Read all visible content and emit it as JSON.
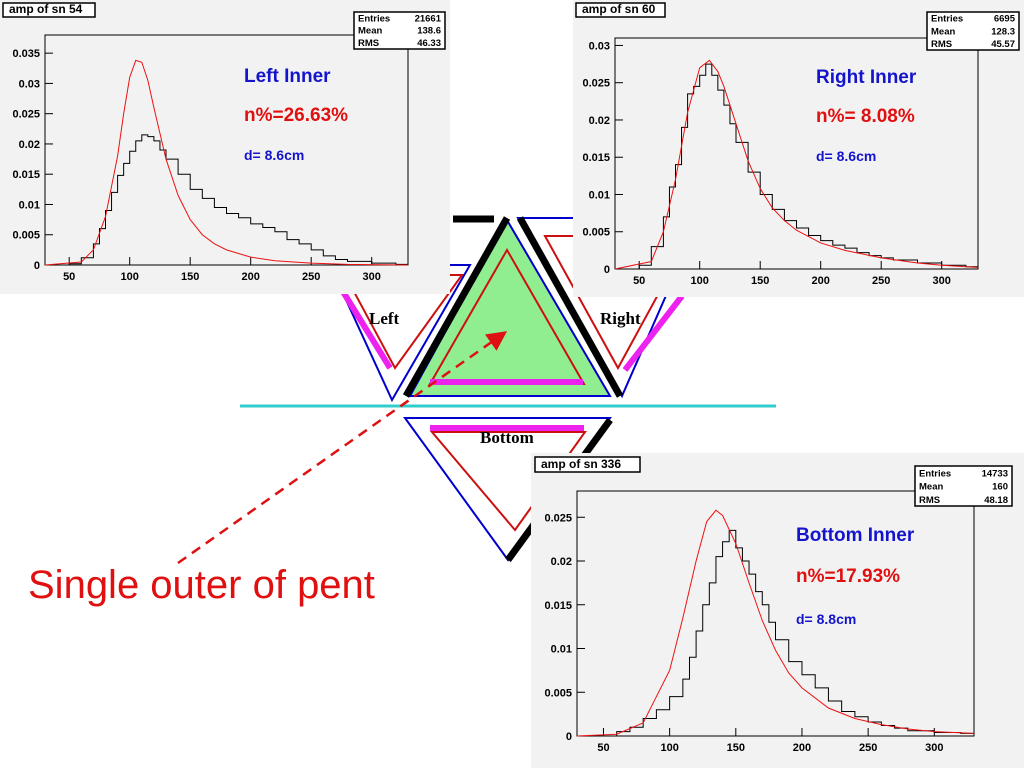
{
  "diagram": {
    "labels": {
      "left": "Left",
      "right": "Right",
      "bottom": "Bottom"
    },
    "caption": "Single outer of pent",
    "colors": {
      "fill": "#90ee90",
      "outline": "#0000cc",
      "inner": "#cc1010",
      "bar": "#ee22ee",
      "thick": "#000000",
      "baseline": "#33cccc",
      "arrow": "#dd1111"
    }
  },
  "panels": [
    {
      "id": "left",
      "title": "amp of sn 54",
      "stats": [
        {
          "k": "Entries",
          "v": "21661"
        },
        {
          "k": "Mean",
          "v": "138.6"
        },
        {
          "k": "RMS",
          "v": "46.33"
        }
      ],
      "annotations": {
        "name": "Left Inner",
        "npct": "n%=26.63%",
        "dist": "d=  8.6cm"
      },
      "chart_data": {
        "type": "line",
        "title": "amp of sn 54",
        "xlim": [
          30,
          330
        ],
        "ylim": [
          0,
          0.038
        ],
        "xticks": [
          50,
          100,
          150,
          200,
          250,
          300
        ],
        "yticks": [
          0,
          0.005,
          0.01,
          0.015,
          0.02,
          0.025,
          0.03,
          0.035
        ],
        "ytick_labels": [
          "0",
          "0.005",
          "0.01",
          "0.015",
          "0.02",
          "0.025",
          "0.03",
          "0.035"
        ],
        "series": [
          {
            "style": "histogram",
            "color": "#000000",
            "points": [
              [
                30,
                0
              ],
              [
                50,
                0.0002
              ],
              [
                60,
                0.0012
              ],
              [
                70,
                0.0035
              ],
              [
                75,
                0.006
              ],
              [
                80,
                0.009
              ],
              [
                85,
                0.012
              ],
              [
                90,
                0.0148
              ],
              [
                95,
                0.0168
              ],
              [
                100,
                0.0188
              ],
              [
                105,
                0.0205
              ],
              [
                110,
                0.0215
              ],
              [
                115,
                0.0212
              ],
              [
                120,
                0.0205
              ],
              [
                125,
                0.019
              ],
              [
                130,
                0.0175
              ],
              [
                140,
                0.015
              ],
              [
                150,
                0.0125
              ],
              [
                160,
                0.011
              ],
              [
                170,
                0.0095
              ],
              [
                180,
                0.0085
              ],
              [
                190,
                0.0078
              ],
              [
                200,
                0.0068
              ],
              [
                210,
                0.0062
              ],
              [
                220,
                0.0055
              ],
              [
                230,
                0.0042
              ],
              [
                240,
                0.0035
              ],
              [
                250,
                0.0025
              ],
              [
                260,
                0.0015
              ],
              [
                270,
                0.0009
              ],
              [
                280,
                0.0006
              ],
              [
                300,
                0.0003
              ],
              [
                320,
                0.0001
              ],
              [
                330,
                0
              ]
            ]
          },
          {
            "style": "curve",
            "color": "#ee1111",
            "points": [
              [
                30,
                0
              ],
              [
                60,
                0.0005
              ],
              [
                70,
                0.0025
              ],
              [
                80,
                0.008
              ],
              [
                90,
                0.018
              ],
              [
                95,
                0.025
              ],
              [
                100,
                0.031
              ],
              [
                105,
                0.0338
              ],
              [
                110,
                0.0335
              ],
              [
                115,
                0.0305
              ],
              [
                120,
                0.026
              ],
              [
                130,
                0.0175
              ],
              [
                140,
                0.0115
              ],
              [
                150,
                0.0075
              ],
              [
                160,
                0.005
              ],
              [
                170,
                0.0035
              ],
              [
                180,
                0.0025
              ],
              [
                200,
                0.0013
              ],
              [
                220,
                0.0007
              ],
              [
                250,
                0.0003
              ],
              [
                280,
                0.0001
              ],
              [
                330,
                0
              ]
            ]
          }
        ]
      }
    },
    {
      "id": "right",
      "title": "amp of sn 60",
      "stats": [
        {
          "k": "Entries",
          "v": "6695"
        },
        {
          "k": "Mean",
          "v": "128.3"
        },
        {
          "k": "RMS",
          "v": "45.57"
        }
      ],
      "annotations": {
        "name": "Right Inner",
        "npct": "n%= 8.08%",
        "dist": "d=  8.6cm"
      },
      "chart_data": {
        "type": "line",
        "title": "amp of sn 60",
        "xlim": [
          30,
          330
        ],
        "ylim": [
          0,
          0.031
        ],
        "xticks": [
          50,
          100,
          150,
          200,
          250,
          300
        ],
        "yticks": [
          0,
          0.005,
          0.01,
          0.015,
          0.02,
          0.025,
          0.03
        ],
        "ytick_labels": [
          "0",
          "0.005",
          "0.01",
          "0.015",
          "0.02",
          "0.025",
          "0.03"
        ],
        "series": [
          {
            "style": "histogram",
            "color": "#000000",
            "points": [
              [
                30,
                0
              ],
              [
                50,
                0.0005
              ],
              [
                60,
                0.003
              ],
              [
                70,
                0.007
              ],
              [
                75,
                0.011
              ],
              [
                80,
                0.014
              ],
              [
                85,
                0.019
              ],
              [
                90,
                0.0235
              ],
              [
                95,
                0.0245
              ],
              [
                100,
                0.026
              ],
              [
                105,
                0.0275
              ],
              [
                110,
                0.026
              ],
              [
                115,
                0.024
              ],
              [
                120,
                0.022
              ],
              [
                125,
                0.0195
              ],
              [
                130,
                0.017
              ],
              [
                140,
                0.013
              ],
              [
                150,
                0.01
              ],
              [
                160,
                0.008
              ],
              [
                170,
                0.0065
              ],
              [
                180,
                0.0055
              ],
              [
                190,
                0.0045
              ],
              [
                200,
                0.0038
              ],
              [
                210,
                0.0032
              ],
              [
                220,
                0.0028
              ],
              [
                230,
                0.0022
              ],
              [
                240,
                0.0018
              ],
              [
                250,
                0.0015
              ],
              [
                260,
                0.0012
              ],
              [
                280,
                0.0008
              ],
              [
                300,
                0.0005
              ],
              [
                320,
                0.0003
              ],
              [
                330,
                0.0002
              ]
            ]
          },
          {
            "style": "curve",
            "color": "#ee1111",
            "points": [
              [
                30,
                0
              ],
              [
                60,
                0.001
              ],
              [
                70,
                0.005
              ],
              [
                80,
                0.012
              ],
              [
                90,
                0.021
              ],
              [
                100,
                0.027
              ],
              [
                108,
                0.028
              ],
              [
                115,
                0.0265
              ],
              [
                120,
                0.0245
              ],
              [
                130,
                0.0195
              ],
              [
                140,
                0.0145
              ],
              [
                150,
                0.0108
              ],
              [
                160,
                0.0082
              ],
              [
                170,
                0.0065
              ],
              [
                180,
                0.0052
              ],
              [
                200,
                0.0035
              ],
              [
                220,
                0.0025
              ],
              [
                250,
                0.0015
              ],
              [
                280,
                0.0008
              ],
              [
                300,
                0.0005
              ],
              [
                330,
                0.0002
              ]
            ]
          }
        ]
      }
    },
    {
      "id": "bottom",
      "title": "amp of sn 336",
      "stats": [
        {
          "k": "Entries",
          "v": "14733"
        },
        {
          "k": "Mean",
          "v": "160"
        },
        {
          "k": "RMS",
          "v": "48.18"
        }
      ],
      "annotations": {
        "name": "Bottom Inner",
        "npct": "n%=17.93%",
        "dist": "d=  8.8cm"
      },
      "chart_data": {
        "type": "line",
        "title": "amp of sn 336",
        "xlim": [
          30,
          330
        ],
        "ylim": [
          0,
          0.028
        ],
        "xticks": [
          50,
          100,
          150,
          200,
          250,
          300
        ],
        "yticks": [
          0,
          0.005,
          0.01,
          0.015,
          0.02,
          0.025
        ],
        "ytick_labels": [
          "0",
          "0.005",
          "0.01",
          "0.015",
          "0.02",
          "0.025"
        ],
        "series": [
          {
            "style": "histogram",
            "color": "#000000",
            "points": [
              [
                30,
                0
              ],
              [
                60,
                0.0005
              ],
              [
                70,
                0.001
              ],
              [
                80,
                0.002
              ],
              [
                90,
                0.003
              ],
              [
                100,
                0.0045
              ],
              [
                110,
                0.0065
              ],
              [
                115,
                0.009
              ],
              [
                120,
                0.012
              ],
              [
                125,
                0.015
              ],
              [
                130,
                0.0175
              ],
              [
                135,
                0.0205
              ],
              [
                140,
                0.0222
              ],
              [
                145,
                0.0235
              ],
              [
                150,
                0.0215
              ],
              [
                155,
                0.02
              ],
              [
                160,
                0.0185
              ],
              [
                165,
                0.0165
              ],
              [
                170,
                0.015
              ],
              [
                175,
                0.013
              ],
              [
                180,
                0.011
              ],
              [
                190,
                0.0085
              ],
              [
                200,
                0.007
              ],
              [
                210,
                0.0055
              ],
              [
                220,
                0.004
              ],
              [
                230,
                0.0028
              ],
              [
                240,
                0.0022
              ],
              [
                250,
                0.0016
              ],
              [
                260,
                0.0012
              ],
              [
                270,
                0.0009
              ],
              [
                280,
                0.0006
              ],
              [
                300,
                0.0004
              ],
              [
                320,
                0.0003
              ],
              [
                330,
                0.0002
              ]
            ]
          },
          {
            "style": "curve",
            "color": "#ee1111",
            "points": [
              [
                30,
                0
              ],
              [
                60,
                0.0002
              ],
              [
                80,
                0.0015
              ],
              [
                100,
                0.0075
              ],
              [
                110,
                0.0135
              ],
              [
                120,
                0.02
              ],
              [
                128,
                0.0245
              ],
              [
                135,
                0.0258
              ],
              [
                140,
                0.0252
              ],
              [
                150,
                0.022
              ],
              [
                160,
                0.0175
              ],
              [
                170,
                0.0132
              ],
              [
                180,
                0.0098
              ],
              [
                190,
                0.0072
              ],
              [
                200,
                0.0055
              ],
              [
                220,
                0.0032
              ],
              [
                240,
                0.002
              ],
              [
                260,
                0.0013
              ],
              [
                280,
                0.0008
              ],
              [
                300,
                0.0005
              ],
              [
                330,
                0.0003
              ]
            ]
          }
        ]
      }
    }
  ]
}
